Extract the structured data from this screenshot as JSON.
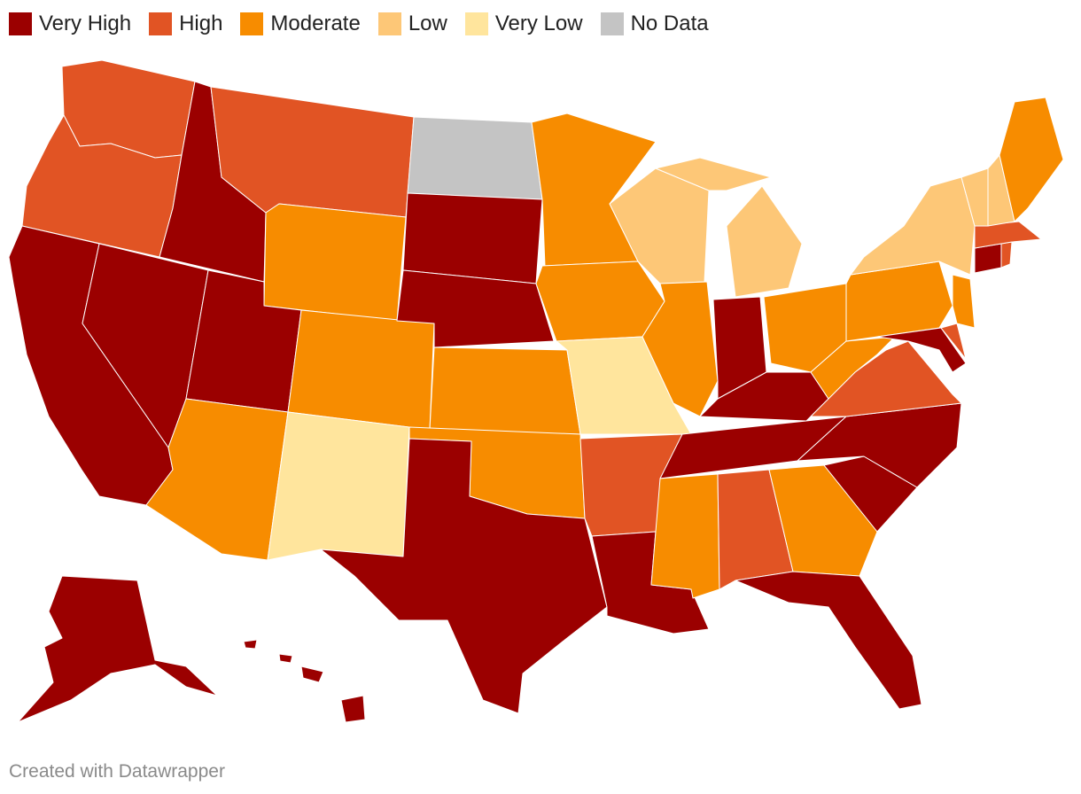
{
  "legend": {
    "items": [
      {
        "label": "Very High",
        "color": "#9b0000"
      },
      {
        "label": "High",
        "color": "#e15424"
      },
      {
        "label": "Moderate",
        "color": "#f78c00"
      },
      {
        "label": "Low",
        "color": "#fdc777"
      },
      {
        "label": "Very Low",
        "color": "#ffe59d"
      },
      {
        "label": "No Data",
        "color": "#c4c4c4"
      }
    ]
  },
  "states": [
    {
      "name": "Washington",
      "category": "High"
    },
    {
      "name": "Oregon",
      "category": "High"
    },
    {
      "name": "California",
      "category": "Very High"
    },
    {
      "name": "Nevada",
      "category": "Very High"
    },
    {
      "name": "Idaho",
      "category": "Very High"
    },
    {
      "name": "Montana",
      "category": "High"
    },
    {
      "name": "Wyoming",
      "category": "Moderate"
    },
    {
      "name": "Utah",
      "category": "Very High"
    },
    {
      "name": "Arizona",
      "category": "Moderate"
    },
    {
      "name": "Colorado",
      "category": "Moderate"
    },
    {
      "name": "New Mexico",
      "category": "Very Low"
    },
    {
      "name": "North Dakota",
      "category": "No Data"
    },
    {
      "name": "South Dakota",
      "category": "Very High"
    },
    {
      "name": "Nebraska",
      "category": "Very High"
    },
    {
      "name": "Kansas",
      "category": "Moderate"
    },
    {
      "name": "Oklahoma",
      "category": "Moderate"
    },
    {
      "name": "Texas",
      "category": "Very High"
    },
    {
      "name": "Minnesota",
      "category": "Moderate"
    },
    {
      "name": "Iowa",
      "category": "Moderate"
    },
    {
      "name": "Missouri",
      "category": "Very Low"
    },
    {
      "name": "Arkansas",
      "category": "High"
    },
    {
      "name": "Louisiana",
      "category": "Very High"
    },
    {
      "name": "Wisconsin",
      "category": "Low"
    },
    {
      "name": "Illinois",
      "category": "Moderate"
    },
    {
      "name": "Michigan",
      "category": "Low"
    },
    {
      "name": "Indiana",
      "category": "Very High"
    },
    {
      "name": "Ohio",
      "category": "Moderate"
    },
    {
      "name": "Kentucky",
      "category": "Very High"
    },
    {
      "name": "Tennessee",
      "category": "Very High"
    },
    {
      "name": "Mississippi",
      "category": "Moderate"
    },
    {
      "name": "Alabama",
      "category": "High"
    },
    {
      "name": "Georgia",
      "category": "Moderate"
    },
    {
      "name": "Florida",
      "category": "Very High"
    },
    {
      "name": "South Carolina",
      "category": "Very High"
    },
    {
      "name": "North Carolina",
      "category": "Very High"
    },
    {
      "name": "Virginia",
      "category": "High"
    },
    {
      "name": "West Virginia",
      "category": "Moderate"
    },
    {
      "name": "Maryland",
      "category": "Very High"
    },
    {
      "name": "Delaware",
      "category": "High"
    },
    {
      "name": "Pennsylvania",
      "category": "Moderate"
    },
    {
      "name": "New Jersey",
      "category": "Moderate"
    },
    {
      "name": "New York",
      "category": "Low"
    },
    {
      "name": "Connecticut",
      "category": "Very High"
    },
    {
      "name": "Rhode Island",
      "category": "High"
    },
    {
      "name": "Massachusetts",
      "category": "High"
    },
    {
      "name": "Vermont",
      "category": "Low"
    },
    {
      "name": "New Hampshire",
      "category": "Low"
    },
    {
      "name": "Maine",
      "category": "Moderate"
    },
    {
      "name": "Alaska",
      "category": "Very High"
    },
    {
      "name": "Hawaii",
      "category": "Very High"
    }
  ],
  "footer": {
    "credit": "Created with Datawrapper"
  }
}
